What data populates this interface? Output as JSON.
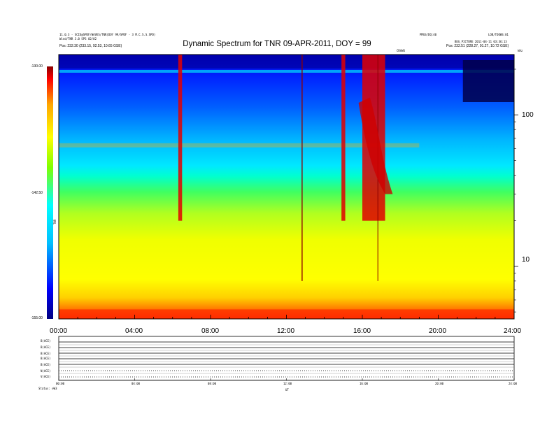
{
  "chart_data": {
    "type": "heatmap",
    "title": "Dynamic Spectrum for TNR 09-APR-2011, DOY = 99",
    "xlabel": "",
    "ylabel": "",
    "x_tick_labels": [
      "00:00",
      "04:00",
      "08:00",
      "12:00",
      "16:00",
      "20:00",
      "24:00"
    ],
    "x_range_hours": [
      0,
      24
    ],
    "y_scale": "log",
    "y_range": [
      4.5,
      250
    ],
    "y_tick_labels": [
      "10",
      "100"
    ],
    "y_ticks": [
      10,
      100
    ],
    "colorbar": {
      "label": "TNR",
      "tick_labels": [
        "-130.00",
        "-142.50",
        "-155.00"
      ],
      "range": [
        -155.0,
        -130.0
      ],
      "colors": [
        "#000080",
        "#0000ff",
        "#00bfff",
        "#00ffff",
        "#7fff00",
        "#ffff00",
        "#ffa500",
        "#ff0000",
        "#8b0000"
      ]
    },
    "bursts": [
      {
        "start_hour": 6.3,
        "end_hour": 6.5,
        "intensity": "strong"
      },
      {
        "start_hour": 12.8,
        "end_hour": 12.85,
        "intensity": "line"
      },
      {
        "start_hour": 14.9,
        "end_hour": 15.1,
        "intensity": "strong"
      },
      {
        "start_hour": 16.0,
        "end_hour": 17.2,
        "intensity": "strong"
      },
      {
        "start_hour": 16.8,
        "end_hour": 16.83,
        "intensity": "line"
      }
    ],
    "aux_panels": {
      "labels": [
        "B(ACE)",
        "B(ACE)",
        "B(ACE)",
        "B(ACE)",
        "B(ACE)",
        "N(ACE)",
        "V(ACE)"
      ],
      "x_tick_labels": [
        "00:00",
        "04:00",
        "08:00",
        "12:00",
        "16:00",
        "20:00",
        "24:00"
      ]
    }
  },
  "header": {
    "left_line1": "11.0.3 - SCIE@SPDF/WAVES/TNR(DOY 99/SPDF - 3 M.C.S.S.SPD)",
    "left_line2": "Wind/TNR 3.0 SPS 02/02",
    "left_line3": "Pos:   232.30 (233.15, 92.53, 10.65 GSE)",
    "right_line1a": "PMGS/DQ:40",
    "right_line1b": "LOB/TOOWS:01",
    "right_line2": "BEG_PICTURE 2011-04-11 03:36:13",
    "right_line3": "Pos:   232.51 (228.27, 91.27, 10.72 GSE)",
    "marker_label": "CRAWS",
    "corner_label": "kHz"
  },
  "footer": {
    "left": "Status:   eW3",
    "mid": "UT"
  }
}
